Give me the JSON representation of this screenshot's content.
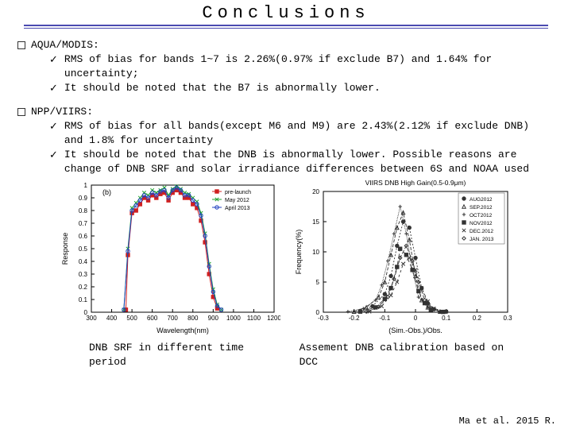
{
  "title": "Conclusions",
  "sections": [
    {
      "label": "AQUA/MODIS:",
      "items": [
        "RMS of bias for bands 1~7 is 2.26%(0.97% if exclude B7) and 1.64% for uncertainty;",
        "It should be noted that the B7 is abnormally lower."
      ]
    },
    {
      "label": "NPP/VIIRS:",
      "items": [
        "RMS of bias for all bands(except M6 and M9) are 2.43%(2.12% if exclude DNB) and 1.8% for uncertainty",
        "It should be noted that the DNB is abnormally lower. Possible reasons are change of DNB SRF and solar irradiance differences between 6S and NOAA used"
      ]
    }
  ],
  "left_chart": {
    "type": "line",
    "panel_label": "(b)",
    "xlabel": "Wavelength(nm)",
    "ylabel": "Response",
    "xlim": [
      300,
      1200
    ],
    "xtick_step": 100,
    "ylim": [
      0,
      1
    ],
    "ytick_step": 0.1,
    "background_color": "#ffffff",
    "axis_color": "#000000",
    "label_fontsize": 9,
    "tick_fontsize": 8,
    "legend_items": [
      {
        "label": "pre-launch",
        "color": "#d02020",
        "marker": "square"
      },
      {
        "label": "May 2012",
        "color": "#20a030",
        "marker": "x"
      },
      {
        "label": "April 2013",
        "color": "#2040c0",
        "marker": "circle-open"
      }
    ],
    "series": [
      {
        "color": "#d02020",
        "marker": "square",
        "x": [
          470,
          480,
          500,
          520,
          540,
          560,
          580,
          600,
          620,
          640,
          660,
          680,
          700,
          720,
          740,
          760,
          780,
          800,
          820,
          840,
          860,
          880,
          900,
          920
        ],
        "y": [
          0.02,
          0.45,
          0.78,
          0.8,
          0.85,
          0.9,
          0.88,
          0.92,
          0.9,
          0.93,
          0.94,
          0.88,
          0.94,
          0.96,
          0.94,
          0.9,
          0.9,
          0.85,
          0.82,
          0.72,
          0.55,
          0.3,
          0.12,
          0.03
        ]
      },
      {
        "color": "#20a030",
        "marker": "x",
        "x": [
          460,
          480,
          500,
          520,
          540,
          560,
          580,
          600,
          620,
          640,
          660,
          680,
          700,
          720,
          740,
          760,
          780,
          800,
          820,
          840,
          860,
          880,
          900,
          920,
          940
        ],
        "y": [
          0.02,
          0.5,
          0.82,
          0.86,
          0.9,
          0.94,
          0.92,
          0.96,
          0.94,
          0.96,
          0.98,
          0.92,
          0.97,
          0.99,
          0.97,
          0.94,
          0.93,
          0.9,
          0.87,
          0.78,
          0.62,
          0.38,
          0.18,
          0.06,
          0.02
        ]
      },
      {
        "color": "#2040c0",
        "marker": "circle-open",
        "x": [
          460,
          480,
          500,
          520,
          540,
          560,
          580,
          600,
          620,
          640,
          660,
          680,
          700,
          720,
          740,
          760,
          780,
          800,
          820,
          840,
          860,
          880,
          900,
          920,
          940
        ],
        "y": [
          0.02,
          0.48,
          0.8,
          0.84,
          0.88,
          0.92,
          0.9,
          0.94,
          0.92,
          0.95,
          0.96,
          0.9,
          0.96,
          0.98,
          0.96,
          0.92,
          0.92,
          0.88,
          0.85,
          0.76,
          0.6,
          0.36,
          0.16,
          0.05,
          0.02
        ]
      }
    ]
  },
  "right_chart": {
    "type": "line",
    "title": "VIIRS DNB High Gain(0.5-0.9μm)",
    "xlabel": "(Sim.-Obs.)/Obs.",
    "ylabel": "Frequency(%)",
    "xlim": [
      -0.3,
      0.3
    ],
    "xticks": [
      -0.3,
      -0.2,
      -0.1,
      0,
      0.1,
      0.2,
      0.3
    ],
    "ylim": [
      0,
      20
    ],
    "ytick_step": 5,
    "background_color": "#ffffff",
    "axis_color": "#000000",
    "label_fontsize": 9,
    "tick_fontsize": 8,
    "legend_items": [
      {
        "label": "AUG2012",
        "marker": "circle"
      },
      {
        "label": "SEP.2012",
        "marker": "triangle"
      },
      {
        "label": "OCT2012",
        "marker": "plus"
      },
      {
        "label": "NOV2012",
        "marker": "square"
      },
      {
        "label": "DEC.2012",
        "marker": "x"
      },
      {
        "label": "JAN. 2013",
        "marker": "diamond"
      }
    ],
    "legend_box_stroke": "#666",
    "series": [
      {
        "marker": "circle",
        "dash": "2,2",
        "x": [
          -0.18,
          -0.14,
          -0.1,
          -0.08,
          -0.06,
          -0.04,
          -0.02,
          0,
          0.02,
          0.04,
          0.06,
          0.1
        ],
        "y": [
          0.2,
          1.0,
          3.0,
          6.0,
          11.0,
          15.0,
          14.0,
          9.0,
          4.0,
          1.5,
          0.5,
          0.1
        ]
      },
      {
        "marker": "triangle",
        "dash": "4,2",
        "x": [
          -0.2,
          -0.16,
          -0.12,
          -0.1,
          -0.08,
          -0.06,
          -0.04,
          -0.02,
          0,
          0.02,
          0.04,
          0.08
        ],
        "y": [
          0.1,
          0.8,
          2.5,
          5.0,
          9.5,
          14.0,
          16.5,
          12.0,
          6.0,
          2.0,
          0.8,
          0.1
        ]
      },
      {
        "marker": "plus",
        "dash": "1,1",
        "x": [
          -0.22,
          -0.17,
          -0.13,
          -0.11,
          -0.09,
          -0.07,
          -0.05,
          -0.03,
          -0.01,
          0.01,
          0.04,
          0.08
        ],
        "y": [
          0.1,
          0.6,
          2.0,
          4.5,
          8.5,
          13.0,
          17.5,
          13.0,
          7.0,
          2.5,
          0.8,
          0.1
        ]
      },
      {
        "marker": "square",
        "dash": "6,3",
        "x": [
          -0.18,
          -0.13,
          -0.1,
          -0.08,
          -0.06,
          -0.05,
          -0.03,
          -0.01,
          0.01,
          0.03,
          0.05,
          0.09
        ],
        "y": [
          0.1,
          0.8,
          2.2,
          4.0,
          7.5,
          10.5,
          9.5,
          7.0,
          3.5,
          1.5,
          0.4,
          0.05
        ]
      },
      {
        "marker": "x",
        "dash": "3,3",
        "x": [
          -0.15,
          -0.11,
          -0.08,
          -0.06,
          -0.04,
          -0.02,
          0,
          0.02,
          0.04,
          0.06,
          0.1
        ],
        "y": [
          0.1,
          1.0,
          2.8,
          5.0,
          8.0,
          9.0,
          7.0,
          4.0,
          1.8,
          0.6,
          0.1
        ]
      },
      {
        "marker": "diamond",
        "dash": "5,2",
        "x": [
          -0.16,
          -0.12,
          -0.09,
          -0.07,
          -0.05,
          -0.03,
          -0.01,
          0.01,
          0.03,
          0.05,
          0.08
        ],
        "y": [
          0.1,
          0.9,
          2.5,
          5.5,
          9.0,
          11.0,
          8.5,
          5.0,
          2.0,
          0.7,
          0.1
        ]
      }
    ]
  },
  "captions": {
    "left": "DNB SRF in different time period",
    "right": "Assement DNB calibration based on DCC"
  },
  "credit": "Ma et al. 2015 R."
}
